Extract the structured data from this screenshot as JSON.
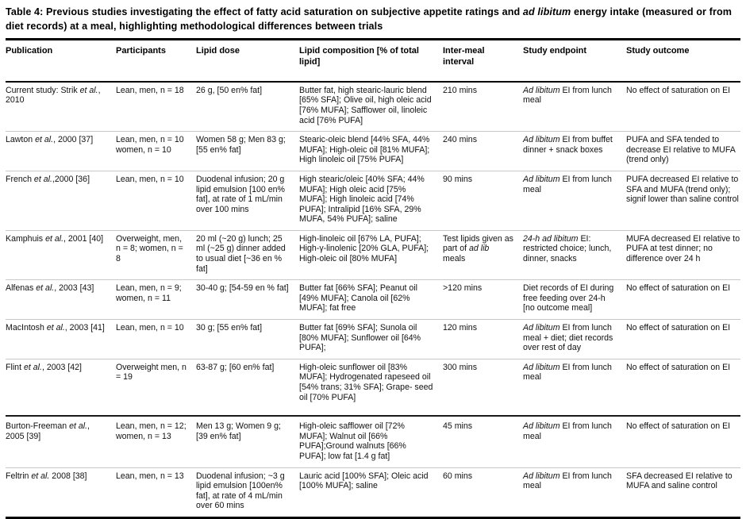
{
  "title": "Table 4: Previous studies investigating the effect of fatty acid saturation on subjective appetite ratings and *ad libitum* energy intake (measured or from diet records) at a meal, highlighting methodological differences between trials",
  "columns": [
    {
      "key": "publication",
      "label": "Publication"
    },
    {
      "key": "participants",
      "label": "Participants"
    },
    {
      "key": "lipid_dose",
      "label": "Lipid dose"
    },
    {
      "key": "lipid_composition",
      "label": "Lipid composition [% of total lipid]"
    },
    {
      "key": "inter_meal_interval",
      "label": "Inter-meal interval"
    },
    {
      "key": "study_endpoint",
      "label": "Study endpoint"
    },
    {
      "key": "study_outcome",
      "label": "Study outcome"
    }
  ],
  "rows": [
    {
      "publication": "Current study: Strik *et al.*, 2010",
      "participants": "Lean, men, n = 18",
      "lipid_dose": "26 g, [50 en% fat]",
      "lipid_composition": "Butter fat, high stearic-lauric blend [65% SFA]; Olive oil, high oleic acid [76% MUFA]; Safflower oil, linoleic acid [76% PUFA]",
      "inter_meal_interval": "210 mins",
      "study_endpoint": "*Ad libitum* EI from lunch meal",
      "study_outcome": "No effect of saturation on EI"
    },
    {
      "publication": "Lawton *et al.*, 2000 [37]",
      "participants": "Lean, men, n = 10 women, n = 10",
      "lipid_dose": "Women 58 g; Men 83 g; [55 en% fat]",
      "lipid_composition": "Stearic-oleic blend [44% SFA, 44% MUFA]; High-oleic oil [81% MUFA]; High linoleic oil [75% PUFA]",
      "inter_meal_interval": "240 mins",
      "study_endpoint": "*Ad libitum* EI from buffet dinner + snack boxes",
      "study_outcome": "PUFA and SFA tended to decrease EI relative to MUFA (trend only)"
    },
    {
      "publication": "French *et al.*,2000 [36]",
      "participants": "Lean, men, n = 10",
      "lipid_dose": "Duodenal infusion; 20 g lipid emulsion [100 en% fat], at rate of 1 mL/min over 100 mins",
      "lipid_composition": "High stearic/oleic [40% SFA; 44% MUFA]; High oleic acid [75% MUFA]; High linoleic acid [74% PUFA]; Intralipid [16% SFA, 29% MUFA, 54% PUFA]; saline",
      "inter_meal_interval": "90 mins",
      "study_endpoint": "*Ad libitum* EI from lunch meal",
      "study_outcome": "PUFA decreased EI relative to SFA and MUFA (trend only); signif lower than saline control"
    },
    {
      "publication": "Kamphuis *et al.*, 2001 [40]",
      "participants": "Overweight, men, n = 8; women, n = 8",
      "lipid_dose": "20 ml (~20 g) lunch; 25 ml (~25 g) dinner added to usual diet [~36 en % fat]",
      "lipid_composition": "High-linoleic oil [67% LA, PUFA]; High-γ-linolenic [20% GLA, PUFA]; High-oleic oil [80% MUFA]",
      "inter_meal_interval": "Test lipids given as part of *ad lib* meals",
      "study_endpoint": "*24-h ad libitum* EI: restricted choice; lunch, dinner, snacks",
      "study_outcome": "MUFA decreased EI relative to PUFA at test dinner; no difference over 24 h"
    },
    {
      "publication": "Alfenas *et al.*, 2003 [43]",
      "participants": "Lean, men, n = 9; women, n = 11",
      "lipid_dose": "30-40 g; [54-59 en % fat]",
      "lipid_composition": "Butter fat [66% SFA]; Peanut oil [49% MUFA]; Canola oil [62% MUFA]; fat free",
      "inter_meal_interval": ">120 mins",
      "study_endpoint": "Diet records of EI during free feeding over 24-h [no outcome meal]",
      "study_outcome": "No effect of saturation on EI"
    },
    {
      "publication": "MacIntosh *et al.*, 2003 [41]",
      "participants": "Lean, men, n = 10",
      "lipid_dose": "30 g; [55 en% fat]",
      "lipid_composition": "Butter fat [69% SFA]; Sunola oil [80% MUFA]; Sunflower oil [64% PUFA];",
      "inter_meal_interval": "120 mins",
      "study_endpoint": "*Ad libitum* EI from lunch meal + diet; diet records over rest of day",
      "study_outcome": "No effect of saturation on EI"
    },
    {
      "publication": "Flint *et al.*, 2003 [42]",
      "participants": "Overweight men, n = 19",
      "lipid_dose": "63-87 g; [60 en% fat]",
      "lipid_composition": "High-oleic sunflower oil [83% MUFA]; Hydrogenated rapeseed oil [54% trans; 31% SFA]; Grape- seed oil [70% PUFA]",
      "inter_meal_interval": "300 mins",
      "study_endpoint": "*Ad libitum* EI from lunch meal",
      "study_outcome": "No effect of saturation on EI",
      "pre_break": true
    },
    {
      "publication": "Burton-Freeman *et al.*, 2005 [39]",
      "participants": "Lean, men, n = 12; women, n = 13",
      "lipid_dose": "Men 13 g; Women 9 g; [39 en% fat]",
      "lipid_composition": "High-oleic safflower oil [72% MUFA]; Walnut oil [66% PUFA];Ground walnuts [66% PUFA]; low fat [1.4 g fat]",
      "inter_meal_interval": "45 mins",
      "study_endpoint": "*Ad libitum* EI from lunch meal",
      "study_outcome": "No effect of saturation on EI",
      "group_break": true
    },
    {
      "publication": "Feltrin *et al.* 2008 [38]",
      "participants": "Lean, men, n = 13",
      "lipid_dose": "Duodenal infusion; ~3 g lipid emulsion [100en% fat], at rate of 4 mL/min over 60 mins",
      "lipid_composition": "Lauric acid [100% SFA]; Oleic acid [100% MUFA]; saline",
      "inter_meal_interval": "60 mins",
      "study_endpoint": "*Ad libitum* EI from lunch meal",
      "study_outcome": "SFA decreased EI relative to MUFA and saline control"
    }
  ]
}
